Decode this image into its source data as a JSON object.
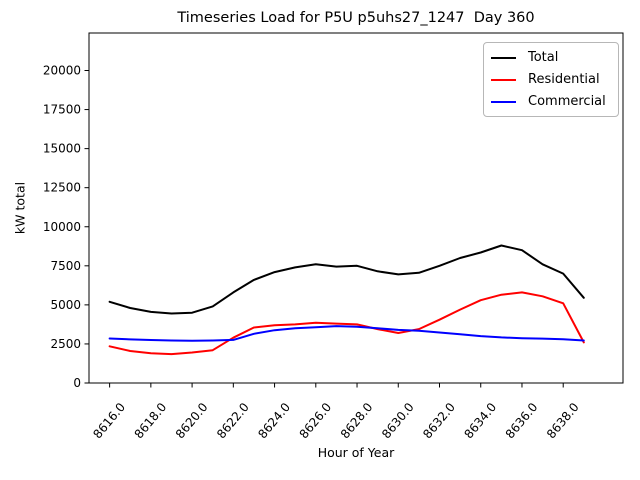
{
  "chart_data": {
    "type": "line",
    "title": "Timeseries Load for P5U p5uhs27_1247  Day 360",
    "xlabel": "Hour of Year",
    "ylabel": "kW total",
    "x": [
      8616,
      8617,
      8618,
      8619,
      8620,
      8621,
      8622,
      8623,
      8624,
      8625,
      8626,
      8627,
      8628,
      8629,
      8630,
      8631,
      8632,
      8633,
      8634,
      8635,
      8636,
      8637,
      8638,
      8639
    ],
    "series": [
      {
        "name": "Total",
        "color": "#000000",
        "values": [
          5200,
          4800,
          4550,
          4450,
          4500,
          4900,
          5800,
          6600,
          7100,
          7400,
          7600,
          7450,
          7500,
          7150,
          6950,
          7050,
          7500,
          8000,
          8350,
          8800,
          8500,
          7600,
          7000,
          5450
        ]
      },
      {
        "name": "Residential",
        "color": "#ff0000",
        "values": [
          2350,
          2050,
          1900,
          1850,
          1950,
          2100,
          2900,
          3550,
          3700,
          3750,
          3850,
          3800,
          3750,
          3450,
          3200,
          3450,
          4050,
          4700,
          5300,
          5650,
          5800,
          5550,
          5100,
          2600
        ]
      },
      {
        "name": "Commercial",
        "color": "#0000ff",
        "values": [
          2850,
          2790,
          2750,
          2720,
          2710,
          2720,
          2760,
          3150,
          3380,
          3500,
          3570,
          3640,
          3600,
          3500,
          3400,
          3340,
          3230,
          3120,
          3000,
          2920,
          2870,
          2840,
          2800,
          2720
        ]
      }
    ],
    "xticks": {
      "values": [
        8616,
        8618,
        8620,
        8622,
        8624,
        8626,
        8628,
        8630,
        8632,
        8634,
        8636,
        8638
      ],
      "labels": [
        "8616.0",
        "8618.0",
        "8620.0",
        "8622.0",
        "8624.0",
        "8626.0",
        "8628.0",
        "8630.0",
        "8632.0",
        "8634.0",
        "8636.0",
        "8638.0"
      ]
    },
    "yticks": {
      "values": [
        0,
        2500,
        5000,
        7500,
        10000,
        12500,
        15000,
        17500,
        20000
      ],
      "labels": [
        "0",
        "2500",
        "5000",
        "7500",
        "10000",
        "12500",
        "15000",
        "17500",
        "20000"
      ]
    },
    "xlim": [
      8615,
      8640.9
    ],
    "ylim": [
      0,
      22400
    ],
    "grid": false,
    "legend": {
      "position": "upper right",
      "entries": [
        "Total",
        "Residential",
        "Commercial"
      ]
    }
  }
}
